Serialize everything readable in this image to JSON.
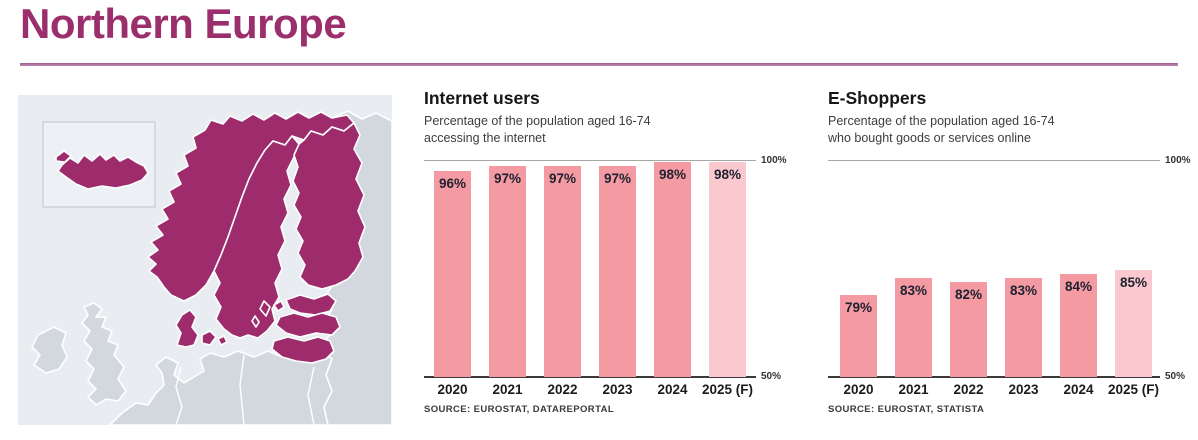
{
  "page": {
    "title": "Northern Europe"
  },
  "colors": {
    "accent_magenta": "#9B2F6B",
    "title_rule": "#B273A2",
    "bar": "#F49AA3",
    "bar_forecast": "#FAC9CF",
    "bar_label": "#20222F",
    "map_highlight": "#9E2C6C",
    "map_land": "#D3D8DF",
    "map_sea": "#E9EDF2"
  },
  "map": {
    "description": "Map of Northern Europe with highlighted countries",
    "highlighted_countries": [
      "Iceland",
      "Norway",
      "Sweden",
      "Finland",
      "Denmark",
      "Estonia",
      "Latvia",
      "Lithuania"
    ]
  },
  "chart_data": [
    {
      "type": "bar",
      "title": "Internet users",
      "subtitle_lines": [
        "Percentage of the population aged 16-74",
        "accessing the internet"
      ],
      "categories": [
        "2020",
        "2021",
        "2022",
        "2023",
        "2024",
        "2025 (F)"
      ],
      "values": [
        96,
        97,
        97,
        97,
        98,
        98
      ],
      "unit": "%",
      "ylim": [
        50,
        100
      ],
      "y_ticks": [
        "100%",
        "50%"
      ],
      "forecast_last": true,
      "source": "SOURCE: EUROSTAT, DATAREPORTAL"
    },
    {
      "type": "bar",
      "title": "E-Shoppers",
      "subtitle_lines": [
        "Percentage of the population aged 16-74",
        "who bought goods or services online"
      ],
      "categories": [
        "2020",
        "2021",
        "2022",
        "2023",
        "2024",
        "2025 (F)"
      ],
      "values": [
        79,
        83,
        82,
        83,
        84,
        85
      ],
      "unit": "%",
      "ylim": [
        50,
        100
      ],
      "y_ticks": [
        "100%",
        "50%"
      ],
      "forecast_last": true,
      "source": "SOURCE: EUROSTAT, STATISTA"
    }
  ]
}
